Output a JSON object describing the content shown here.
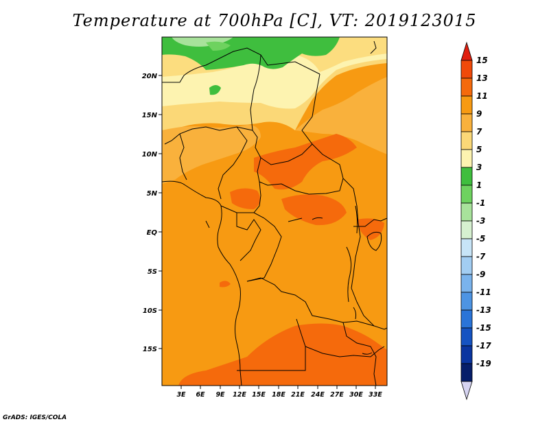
{
  "title": "Temperature at 700hPa [C], VT: 2019123015",
  "footer": "GrADS: IGES/COLA",
  "map": {
    "lat_labels": [
      "20N",
      "15N",
      "10N",
      "5N",
      "EQ",
      "5S",
      "10S",
      "15S"
    ],
    "lon_labels": [
      "3E",
      "6E",
      "9E",
      "12E",
      "15E",
      "18E",
      "21E",
      "24E",
      "27E",
      "30E",
      "33E"
    ]
  },
  "colorbar": {
    "labels": [
      "15",
      "13",
      "11",
      "9",
      "7",
      "5",
      "3",
      "1",
      "-1",
      "-3",
      "-5",
      "-7",
      "-9",
      "-11",
      "-13",
      "-15",
      "-17",
      "-19"
    ],
    "colors": [
      "#e01e0e",
      "#f04a0a",
      "#f56a0c",
      "#f79a12",
      "#f9b13c",
      "#fbd877",
      "#fdf3b0",
      "#3fbe3e",
      "#6ed25f",
      "#a8e29b",
      "#d6f0d0",
      "#c7e4f7",
      "#a2cdf2",
      "#7ab3ec",
      "#4d94e3",
      "#2a74d8",
      "#1553c2",
      "#0a35a0",
      "#061e6a",
      "#d6d4f2"
    ]
  }
}
